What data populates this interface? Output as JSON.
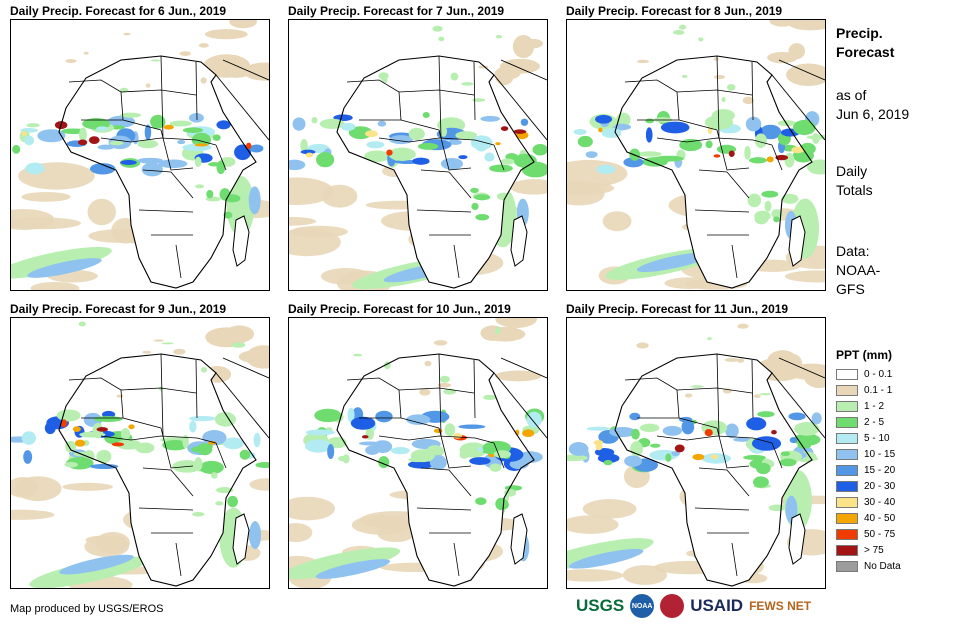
{
  "panels": [
    {
      "title": "Daily Precip. Forecast for 6 Jun., 2019"
    },
    {
      "title": "Daily Precip. Forecast for 7 Jun., 2019"
    },
    {
      "title": "Daily Precip. Forecast for 8 Jun., 2019"
    },
    {
      "title": "Daily Precip. Forecast for 9 Jun., 2019"
    },
    {
      "title": "Daily Precip. Forecast for 10 Jun., 2019"
    },
    {
      "title": "Daily Precip. Forecast for 11 Jun., 2019"
    }
  ],
  "sidebar": {
    "title_line1": "Precip.",
    "title_line2": "Forecast",
    "asof_line1": "as of",
    "asof_line2": "Jun 6, 2019",
    "totals_line1": "Daily",
    "totals_line2": "Totals",
    "data_line1": "Data:",
    "data_line2": "NOAA-",
    "data_line3": "GFS"
  },
  "legend": {
    "title": "PPT (mm)",
    "items": [
      {
        "label": "0 - 0.1",
        "color": "#ffffff"
      },
      {
        "label": "0.1 - 1",
        "color": "#e8d7b8"
      },
      {
        "label": "1 - 2",
        "color": "#b8efb0"
      },
      {
        "label": "2 - 5",
        "color": "#6fdc6f"
      },
      {
        "label": "5 - 10",
        "color": "#b2ecf2"
      },
      {
        "label": "10 - 15",
        "color": "#8fc2ef"
      },
      {
        "label": "15 - 20",
        "color": "#5296e6"
      },
      {
        "label": "20 - 30",
        "color": "#1f5fe6"
      },
      {
        "label": "30 - 40",
        "color": "#fbe38a"
      },
      {
        "label": "40 - 50",
        "color": "#f5a500"
      },
      {
        "label": "50 - 75",
        "color": "#f03c00"
      },
      {
        "label": "> 75",
        "color": "#a31414"
      },
      {
        "label": "No Data",
        "color": "#9c9c9c"
      }
    ]
  },
  "footer": {
    "credit": "Map produced by USGS/EROS",
    "logos": {
      "usgs": "USGS",
      "noaa": "NOAA",
      "usaid": "USAID",
      "fewsnet": "FEWS NET"
    }
  }
}
